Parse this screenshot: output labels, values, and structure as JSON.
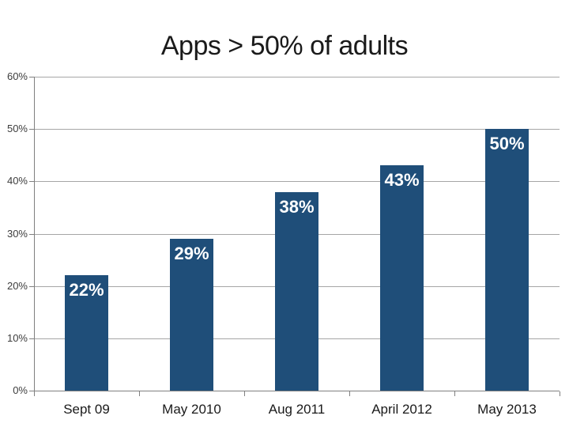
{
  "slide": {
    "title": "Apps > 50% of adults"
  },
  "chart_data": {
    "type": "bar",
    "title": "Apps > 50% of adults",
    "categories": [
      "Sept 09",
      "May 2010",
      "Aug 2011",
      "April 2012",
      "May 2013"
    ],
    "values": [
      22,
      29,
      38,
      43,
      50
    ],
    "data_labels": [
      "22%",
      "29%",
      "38%",
      "43%",
      "50%"
    ],
    "data_label_position": "inside-end",
    "xlabel": "",
    "ylabel": "",
    "ylim": [
      0,
      60
    ],
    "y_tick_values": [
      60,
      50,
      40,
      30,
      20,
      10,
      0
    ],
    "y_tick_labels": [
      "60%",
      "50%",
      "40%",
      "30%",
      "20%",
      "10%",
      "0%"
    ],
    "grid": true,
    "legend": false,
    "colors": {
      "bar": "#1F4E79",
      "data_label": "#FFFFFF",
      "gridline": "#A6A6A6",
      "axis": "#808080",
      "y_tick_label": "#3D3D3D",
      "category_label": "#1A1A1A",
      "title": "#1A1A1A",
      "background": "#FFFFFF"
    }
  }
}
